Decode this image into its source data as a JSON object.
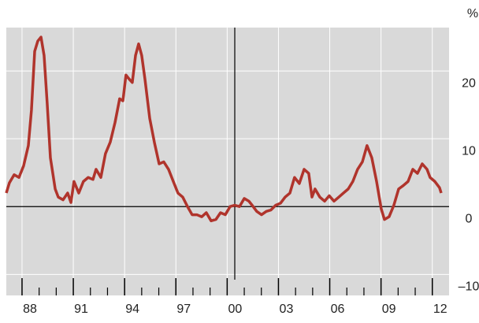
{
  "chart_data": {
    "type": "line",
    "y_unit": "%",
    "x": [
      1987.08,
      1987.26,
      1987.54,
      1987.82,
      1988.09,
      1988.37,
      1988.55,
      1988.74,
      1988.92,
      1989.11,
      1989.29,
      1989.47,
      1989.66,
      1989.94,
      1990.12,
      1990.4,
      1990.67,
      1990.86,
      1991.04,
      1991.32,
      1991.59,
      1991.87,
      1992.15,
      1992.33,
      1992.61,
      1992.88,
      1993.16,
      1993.44,
      1993.71,
      1993.9,
      1994.08,
      1994.27,
      1994.45,
      1994.64,
      1994.82,
      1995.0,
      1995.19,
      1995.47,
      1995.74,
      1996.02,
      1996.29,
      1996.57,
      1996.85,
      1997.12,
      1997.4,
      1997.68,
      1997.95,
      1998.23,
      1998.51,
      1998.78,
      1999.06,
      1999.34,
      1999.61,
      1999.89,
      2000.17,
      2000.44,
      2000.72,
      2001.0,
      2001.27,
      2001.46,
      2001.73,
      2002.01,
      2002.29,
      2002.56,
      2002.84,
      2003.12,
      2003.39,
      2003.67,
      2003.94,
      2004.22,
      2004.5,
      2004.77,
      2004.96,
      2005.14,
      2005.42,
      2005.7,
      2005.97,
      2006.25,
      2006.53,
      2006.8,
      2007.08,
      2007.35,
      2007.63,
      2007.91,
      2008.18,
      2008.46,
      2008.74,
      2009.01,
      2009.2,
      2009.47,
      2009.75,
      2010.03,
      2010.3,
      2010.58,
      2010.86,
      2011.13,
      2011.41,
      2011.69,
      2011.87,
      2012.15,
      2012.42,
      2012.52
    ],
    "series": [
      {
        "color": "#b0342c",
        "values": [
          2.0,
          3.5,
          4.7,
          4.3,
          6,
          9,
          14.2,
          22.9,
          24.4,
          25,
          22.3,
          15.3,
          7.2,
          2.6,
          1.4,
          1,
          2,
          0.6,
          3.7,
          2,
          3.7,
          4.3,
          4,
          5.5,
          4.3,
          7.8,
          9.5,
          12.4,
          15.9,
          15.6,
          19.4,
          18.8,
          18.3,
          22.3,
          24,
          22.3,
          18.8,
          13,
          9.5,
          6.3,
          6.6,
          5.5,
          3.7,
          2,
          1.4,
          0,
          -1.2,
          -1.2,
          -1.5,
          -0.9,
          -2.1,
          -1.9,
          -0.9,
          -1.2,
          0,
          0.2,
          0,
          1.2,
          0.8,
          0.2,
          -0.7,
          -1.2,
          -0.7,
          -0.5,
          0.2,
          0.5,
          1.4,
          2,
          4.3,
          3.4,
          5.5,
          4.9,
          1.4,
          2.6,
          1.4,
          0.8,
          1.6,
          0.8,
          1.4,
          2,
          2.6,
          3.7,
          5.5,
          6.6,
          9,
          7.2,
          3.7,
          -0.3,
          -1.9,
          -1.5,
          0.2,
          2.6,
          3.1,
          3.7,
          5.5,
          4.9,
          6.3,
          5.5,
          4.3,
          3.7,
          2.8,
          2.0
        ]
      }
    ],
    "xlim": [
      1987.08,
      2012.98
    ],
    "xticks": [
      {
        "value": 1988,
        "label": "88"
      },
      {
        "value": 1991,
        "label": "91"
      },
      {
        "value": 1994,
        "label": "94"
      },
      {
        "value": 1997,
        "label": "97"
      },
      {
        "value": 2000,
        "label": "00"
      },
      {
        "value": 2003,
        "label": "03"
      },
      {
        "value": 2006,
        "label": "06"
      },
      {
        "value": 2009,
        "label": "09"
      },
      {
        "value": 2012,
        "label": "12"
      }
    ],
    "xminorticks": [
      1989,
      1990,
      1992,
      1993,
      1995,
      1996,
      1998,
      1999,
      2001,
      2002,
      2004,
      2005,
      2007,
      2008,
      2010,
      2011
    ],
    "ylim": [
      -13.1,
      26.4
    ],
    "yticks": [
      {
        "value": -10,
        "label": "–10"
      },
      0,
      10,
      20
    ],
    "grid": true
  }
}
